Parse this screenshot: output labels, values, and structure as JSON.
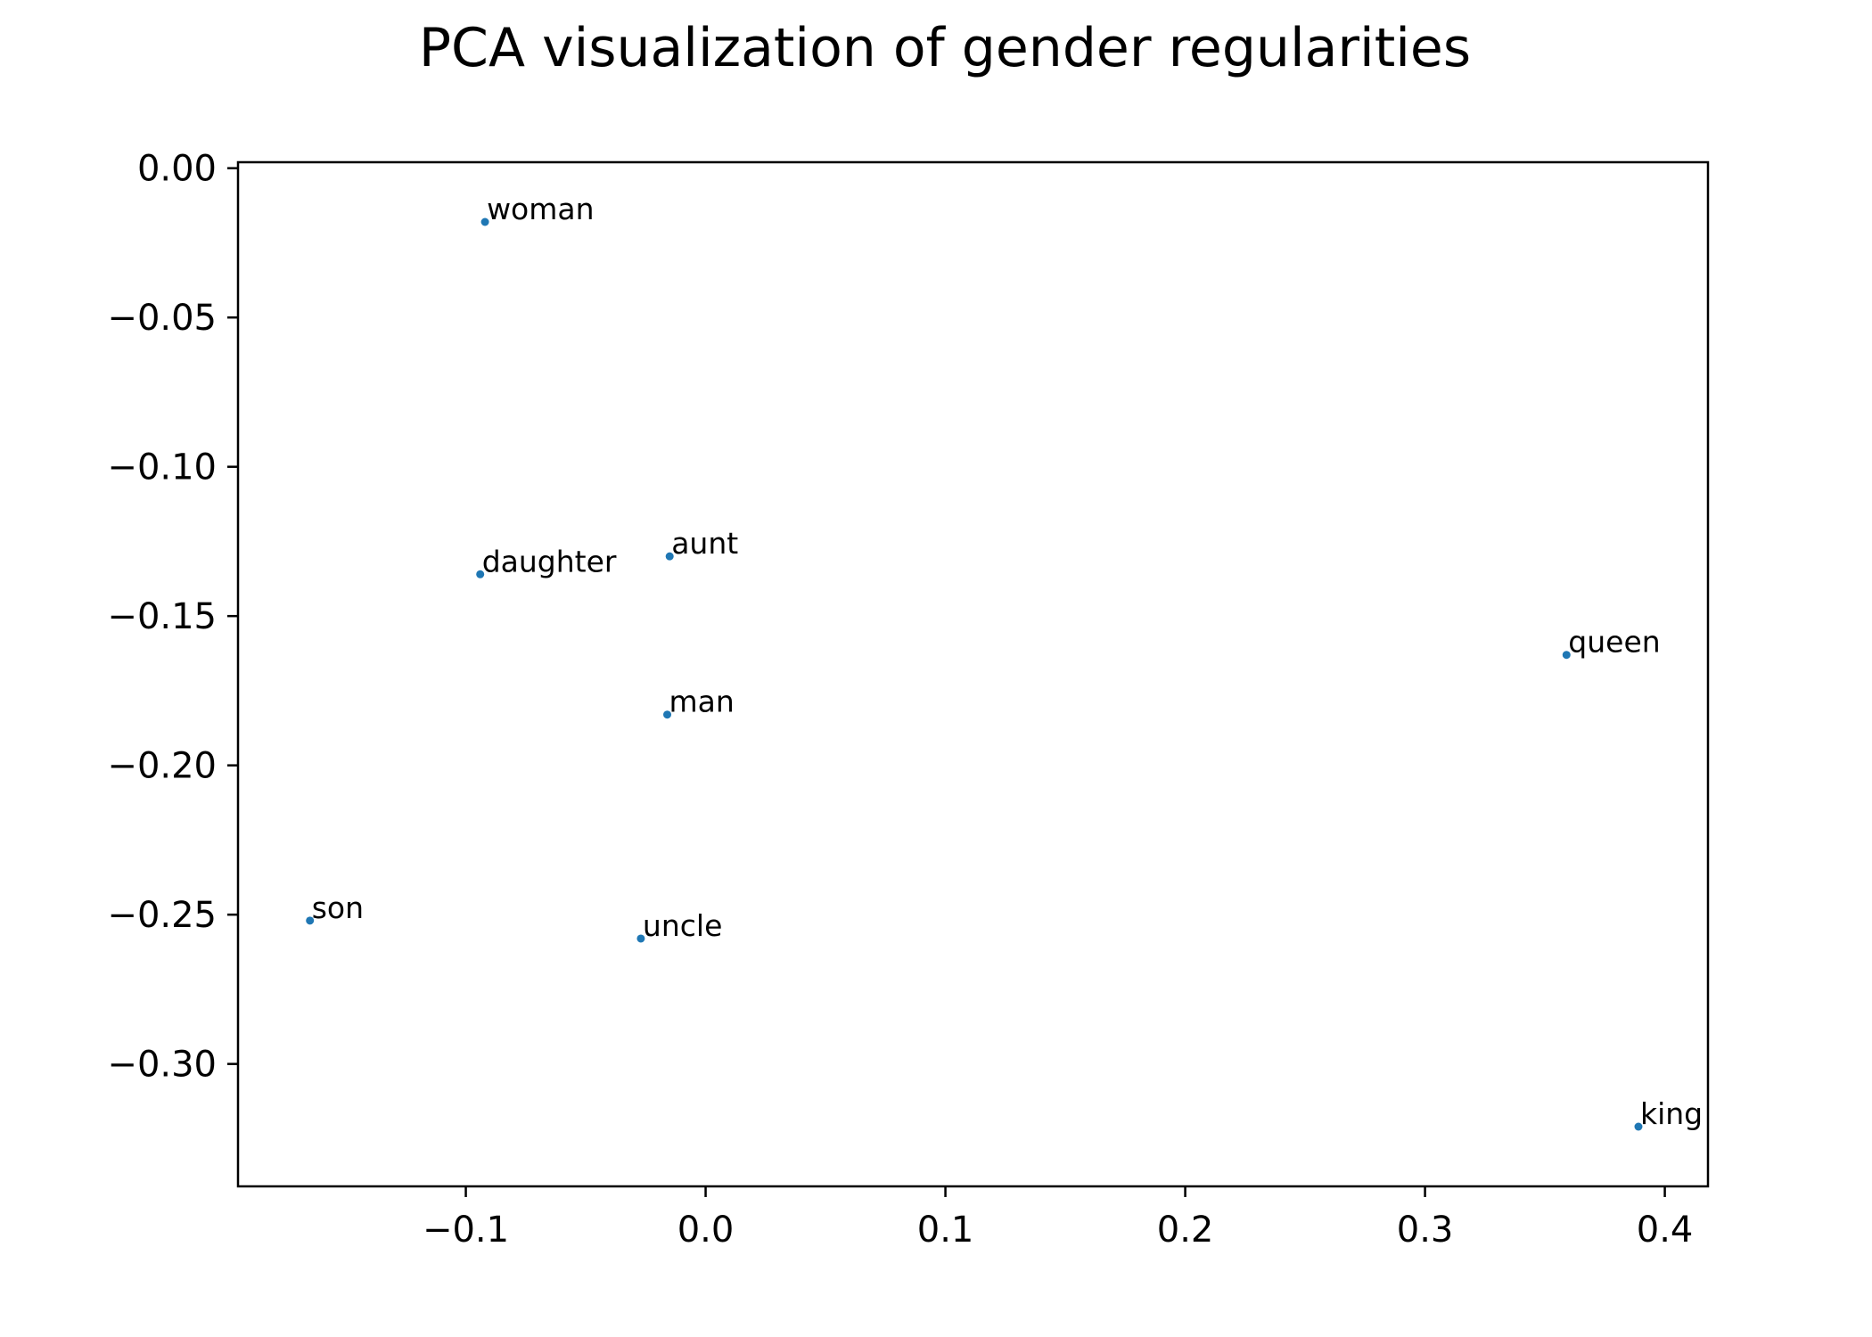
{
  "chart_data": {
    "type": "scatter",
    "title": "PCA visualization of gender regularities",
    "xlabel": "",
    "ylabel": "",
    "xlim": [
      -0.195,
      0.418
    ],
    "ylim": [
      -0.341,
      0.002
    ],
    "x_ticks": [
      -0.1,
      0.0,
      0.1,
      0.2,
      0.3,
      0.4
    ],
    "x_tick_labels": [
      "−0.1",
      "0.0",
      "0.1",
      "0.2",
      "0.3",
      "0.4"
    ],
    "y_ticks": [
      0.0,
      -0.05,
      -0.1,
      -0.15,
      -0.2,
      -0.25,
      -0.3
    ],
    "y_tick_labels": [
      "0.00",
      "−0.05",
      "−0.10",
      "−0.15",
      "−0.20",
      "−0.25",
      "−0.30"
    ],
    "grid": false,
    "legend": "none",
    "point_color": "#1f77b4",
    "points": [
      {
        "label": "woman",
        "x": -0.092,
        "y": -0.018
      },
      {
        "label": "daughter",
        "x": -0.094,
        "y": -0.136
      },
      {
        "label": "aunt",
        "x": -0.015,
        "y": -0.13
      },
      {
        "label": "queen",
        "x": 0.359,
        "y": -0.163
      },
      {
        "label": "man",
        "x": -0.016,
        "y": -0.183
      },
      {
        "label": "son",
        "x": -0.165,
        "y": -0.252
      },
      {
        "label": "uncle",
        "x": -0.027,
        "y": -0.258
      },
      {
        "label": "king",
        "x": 0.389,
        "y": -0.321
      }
    ]
  }
}
